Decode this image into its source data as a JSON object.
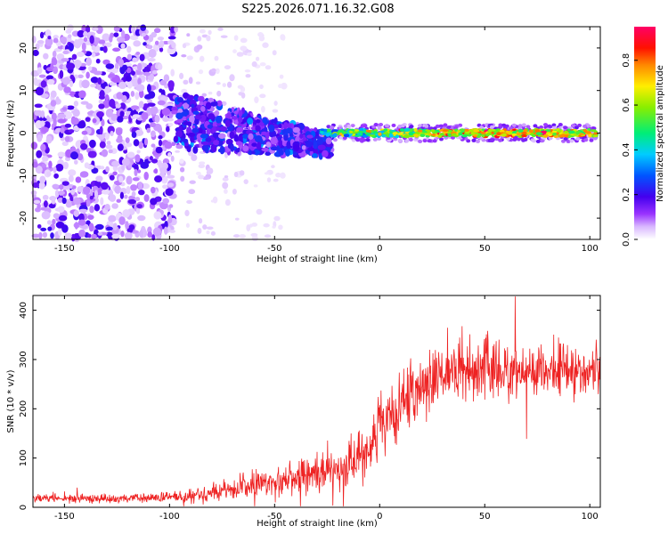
{
  "figure_title": "S225.2026.071.16.32.G08",
  "colors": {
    "snr_line": "#ee2222",
    "colormap": [
      "#ffffff",
      "#e8d0ff",
      "#aa66ff",
      "#7700ee",
      "#2244ff",
      "#00ccff",
      "#00ee88",
      "#ccee00",
      "#ffbb00",
      "#ff2200",
      "#ff0066"
    ]
  },
  "chart_data": [
    {
      "type": "heatmap",
      "name": "spectrogram",
      "xlabel": "Height of straight line (km)",
      "ylabel": "Frequency (Hz)",
      "xlim": [
        -165,
        105
      ],
      "ylim": [
        -25,
        25
      ],
      "xticks": [
        -150,
        -100,
        -50,
        0,
        50,
        100
      ],
      "yticks": [
        -20,
        -10,
        0,
        10,
        20
      ],
      "colorbar": {
        "label": "Normalized spectral amplitude",
        "range": [
          0.0,
          0.95
        ],
        "ticks": [
          0.0,
          0.2,
          0.4,
          0.6,
          0.8
        ]
      },
      "description_of_signal": [
        {
          "x_range": [
            -165,
            -100
          ],
          "content": "broadband noise, amplitude ~0.05-0.2"
        },
        {
          "x_range": [
            -100,
            -25
          ],
          "content": "spread signal around 0 Hz, drifting from +3 Hz to -3 Hz, amplitude ~0.1-0.35"
        },
        {
          "x_range": [
            -25,
            103
          ],
          "content": "narrow line at ~0 Hz (±1.5 Hz), amplitude ~0.3-0.95"
        }
      ]
    },
    {
      "type": "line",
      "name": "snr",
      "xlabel": "Height of straight line (km)",
      "ylabel": "SNR (10 * v/v)",
      "xlim": [
        -165,
        105
      ],
      "ylim": [
        0,
        430
      ],
      "xticks": [
        -150,
        -100,
        -50,
        0,
        50,
        100
      ],
      "yticks": [
        0,
        100,
        200,
        300,
        400
      ],
      "series": [
        {
          "name": "SNR",
          "trend": {
            "x": [
              -165,
              -120,
              -100,
              -80,
              -60,
              -40,
              -20,
              -10,
              0,
              10,
              20,
              30,
              40,
              60,
              80,
              105
            ],
            "mean": [
              18,
              18,
              20,
              30,
              45,
              60,
              80,
              100,
              160,
              200,
              240,
              275,
              285,
              280,
              280,
              275
            ],
            "spread": [
              8,
              8,
              10,
              18,
              25,
              30,
              40,
              50,
              55,
              60,
              60,
              55,
              60,
              55,
              45,
              40
            ]
          }
        }
      ]
    }
  ]
}
